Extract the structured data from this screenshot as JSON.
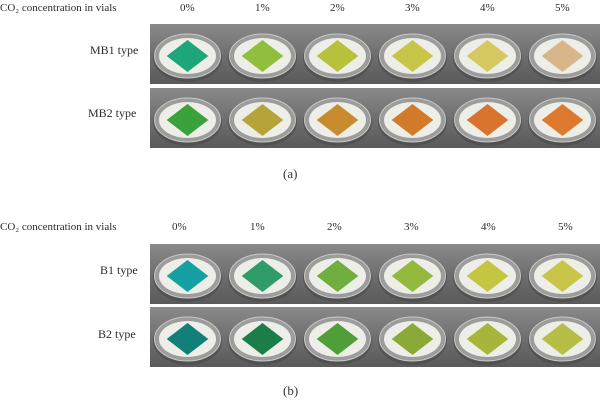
{
  "panel_a": {
    "header": "CO₂ concentration in vials",
    "percents": [
      "0%",
      "1%",
      "2%",
      "3%",
      "4%",
      "5%"
    ],
    "rows": [
      {
        "label": "MB1 type",
        "colors": [
          "#1fa57a",
          "#8fbf3c",
          "#b6c23c",
          "#c8c648",
          "#d6c860",
          "#d9b68a"
        ]
      },
      {
        "label": "MB2 type",
        "colors": [
          "#3aa23a",
          "#b6a33a",
          "#c88c2e",
          "#d27a2c",
          "#d8742e",
          "#de7a30"
        ]
      }
    ],
    "caption": "(a)"
  },
  "panel_b": {
    "header": "CO₂ concentration in vials",
    "percents": [
      "0%",
      "1%",
      "2%",
      "3%",
      "4%",
      "5%"
    ],
    "rows": [
      {
        "label": "B1 type",
        "colors": [
          "#15a0a2",
          "#2f9c6a",
          "#6fae3f",
          "#93b93f",
          "#c4c642",
          "#c8c548"
        ]
      },
      {
        "label": "B2 type",
        "colors": [
          "#127f7a",
          "#1b7e4a",
          "#4f9e38",
          "#8aa936",
          "#a7b63a",
          "#b6be46"
        ]
      }
    ],
    "caption": "(b)"
  }
}
